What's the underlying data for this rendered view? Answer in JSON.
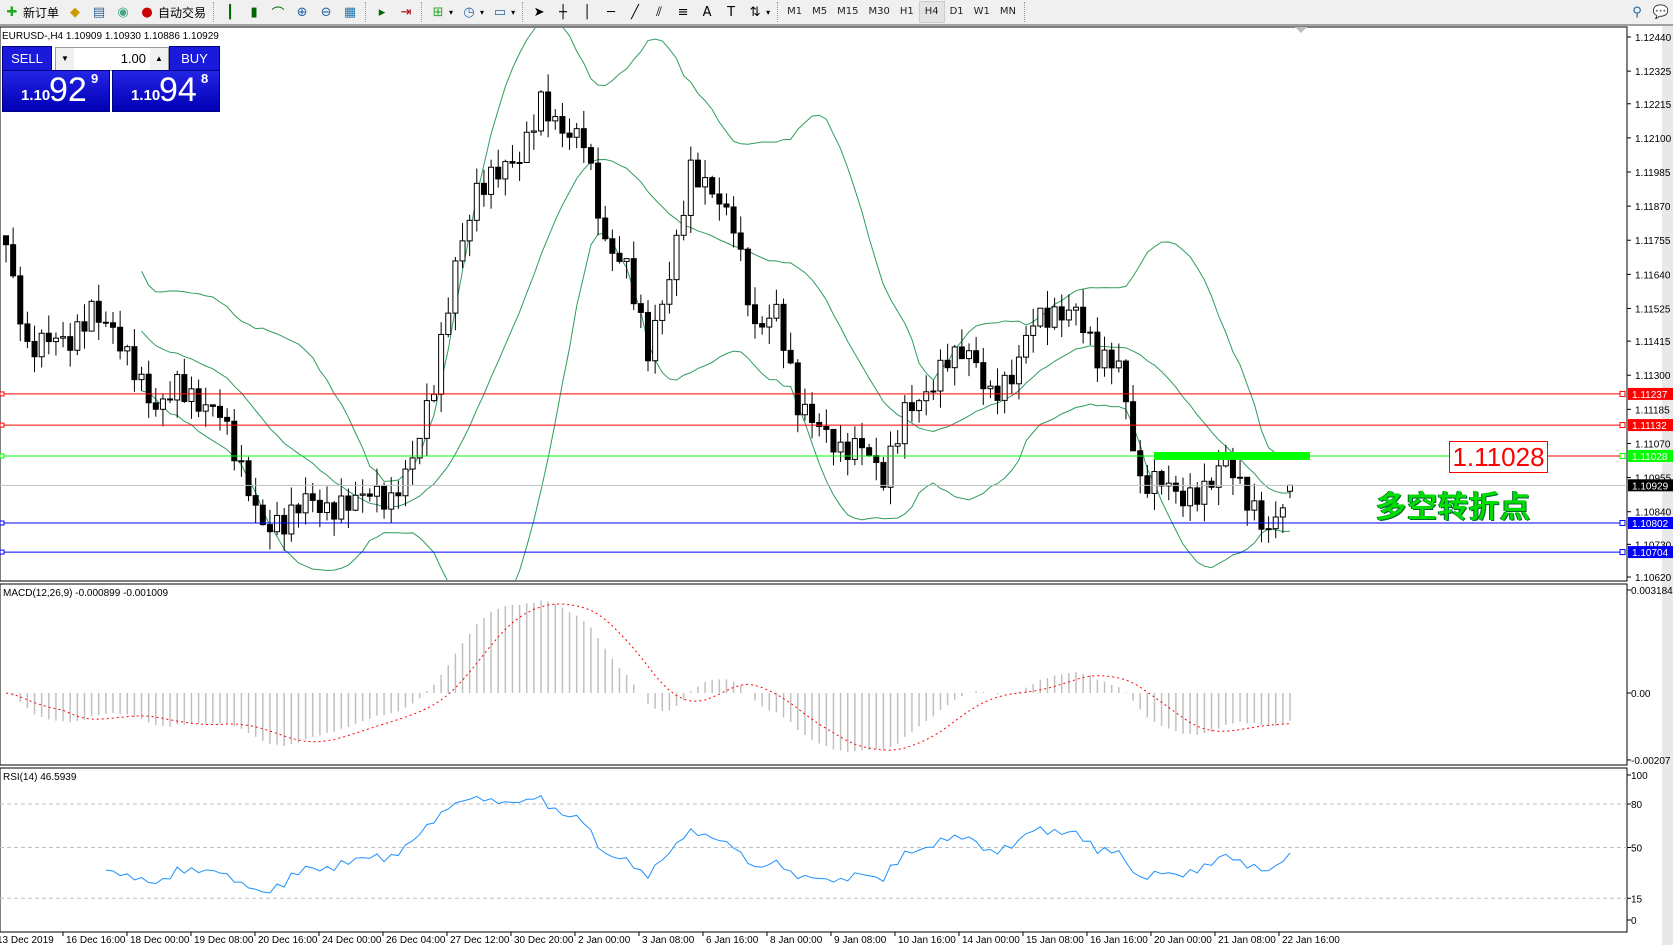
{
  "toolbar": {
    "new_order": "新订单",
    "auto_trading": "自动交易",
    "timeframes": [
      "M1",
      "M5",
      "M15",
      "M30",
      "H1",
      "H4",
      "D1",
      "W1",
      "MN"
    ],
    "active_timeframe": "H4"
  },
  "chart": {
    "symbol_line": "EURUSD-,H4  1.10909 1.10930 1.10886 1.10929",
    "colors": {
      "bands": "#2e9d5a",
      "bull": "#ffffff",
      "bear": "#000000",
      "macd_hist": "#c0c0c0",
      "macd_signal": "#ff0000",
      "rsi": "#1e90ff"
    }
  },
  "trade_panel": {
    "sell_label": "SELL",
    "buy_label": "BUY",
    "lots": "1.00",
    "bid": {
      "prefix": "1.10",
      "big": "92",
      "sup": "9"
    },
    "ask": {
      "prefix": "1.10",
      "big": "94",
      "sup": "8"
    }
  },
  "price_axis": {
    "ticks": [
      "1.12440",
      "1.12325",
      "1.12215",
      "1.12100",
      "1.11985",
      "1.11870",
      "1.11755",
      "1.11640",
      "1.11525",
      "1.11415",
      "1.11300",
      "1.11185",
      "1.11070",
      "1.10955",
      "1.10840",
      "1.10730",
      "1.10620"
    ],
    "levels": [
      {
        "price": "1.11237",
        "color": "#ff0000"
      },
      {
        "price": "1.11132",
        "color": "#ff0000"
      },
      {
        "price": "1.11028",
        "color": "#00ff00"
      },
      {
        "price": "1.10802",
        "color": "#0000ff"
      },
      {
        "price": "1.10704",
        "color": "#0000ff"
      }
    ],
    "current": {
      "price": "1.10929",
      "color": "#000000"
    }
  },
  "annotation": {
    "price_label": "1.11028",
    "text": "多空转折点",
    "zone_color": "#00ff00"
  },
  "macd": {
    "label": "MACD(12,26,9) -0.000899 -0.001009",
    "ticks": [
      "0.003184",
      "0.00",
      "-0.00207"
    ]
  },
  "rsi": {
    "label": "RSI(14) 46.5939",
    "ticks": [
      "100",
      "80",
      "50",
      "15",
      "0"
    ],
    "levels": [
      80,
      50,
      15
    ]
  },
  "time_axis": [
    "13 Dec 2019",
    "16 Dec 16:00",
    "18 Dec 00:00",
    "19 Dec 08:00",
    "20 Dec 16:00",
    "24 Dec 00:00",
    "26 Dec 04:00",
    "27 Dec 12:00",
    "30 Dec 20:00",
    "2 Jan 00:00",
    "3 Jan 08:00",
    "6 Jan 16:00",
    "8 Jan 00:00",
    "9 Jan 08:00",
    "10 Jan 16:00",
    "14 Jan 00:00",
    "15 Jan 08:00",
    "16 Jan 16:00",
    "20 Jan 00:00",
    "21 Jan 08:00",
    "22 Jan 16:00"
  ],
  "series": {
    "close_path": [
      1.1174,
      1.1138,
      1.1143,
      1.1141,
      1.1152,
      1.1145,
      1.1132,
      1.1118,
      1.1127,
      1.112,
      1.1118,
      1.1098,
      1.1079,
      1.108,
      1.1089,
      1.1084,
      1.1087,
      1.1091,
      1.1087,
      1.1102,
      1.1127,
      1.1167,
      1.1192,
      1.1199,
      1.1203,
      1.1222,
      1.1212,
      1.121,
      1.1174,
      1.1167,
      1.1138,
      1.1163,
      1.1199,
      1.1192,
      1.1181,
      1.1145,
      1.1152,
      1.112,
      1.1113,
      1.1104,
      1.1107,
      1.1095,
      1.1118,
      1.1123,
      1.1136,
      1.1138,
      1.1123,
      1.1129,
      1.1149,
      1.115,
      1.1152,
      1.1136,
      1.1134,
      1.1093,
      1.1095,
      1.1088,
      1.1091,
      1.1102,
      1.1088,
      1.1077,
      1.1092
    ],
    "last_bar": {
      "open": 1.10909,
      "high": 1.1093,
      "low": 1.10886,
      "close": 1.10929
    }
  }
}
